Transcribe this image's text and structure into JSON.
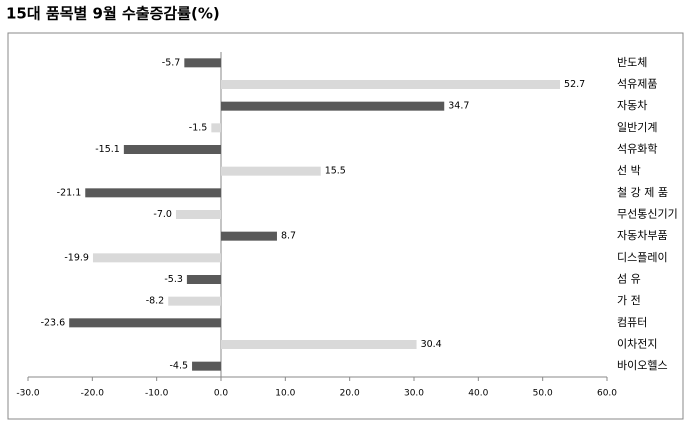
{
  "chart_data": {
    "type": "hbar",
    "title": "15대 품목별 9월 수출증감률(%)",
    "categories": [
      "반도체",
      "석유제품",
      "자동차",
      "일반기계",
      "석유화학",
      "선 박",
      "철 강 제 품",
      "무선통신기기",
      "자동차부품",
      "디스플레이",
      "섬 유",
      "가 전",
      "컴퓨터",
      "이차전지",
      "바이오헬스"
    ],
    "values": [
      -5.7,
      52.7,
      34.7,
      -1.5,
      -15.1,
      15.5,
      -21.1,
      -7.0,
      8.7,
      -19.9,
      -5.3,
      -8.2,
      -23.6,
      30.4,
      -4.5
    ],
    "value_labels": [
      "-5.7",
      "52.7",
      "34.7",
      "-1.5",
      "-15.1",
      "15.5",
      "-21.1",
      "-7.0",
      "8.7",
      "-19.9",
      "-5.3",
      "-8.2",
      "-23.6",
      "30.4",
      "-4.5"
    ],
    "colors": [
      "#595959",
      "#d9d9d9",
      "#595959",
      "#d9d9d9",
      "#595959",
      "#d9d9d9",
      "#595959",
      "#d9d9d9",
      "#595959",
      "#d9d9d9",
      "#595959",
      "#d9d9d9",
      "#595959",
      "#d9d9d9",
      "#595959"
    ],
    "xlim": [
      -30,
      60
    ],
    "xticks": [
      {
        "value": -30,
        "label": "-30.0"
      },
      {
        "value": -20,
        "label": "-20.0"
      },
      {
        "value": -10,
        "label": "-10.0"
      },
      {
        "value": 0,
        "label": "0.0"
      },
      {
        "value": 10,
        "label": "10.0"
      },
      {
        "value": 20,
        "label": "20.0"
      },
      {
        "value": 30,
        "label": "30.0"
      },
      {
        "value": 40,
        "label": "40.0"
      },
      {
        "value": 50,
        "label": "50.0"
      },
      {
        "value": 60,
        "label": "60.0"
      }
    ]
  }
}
